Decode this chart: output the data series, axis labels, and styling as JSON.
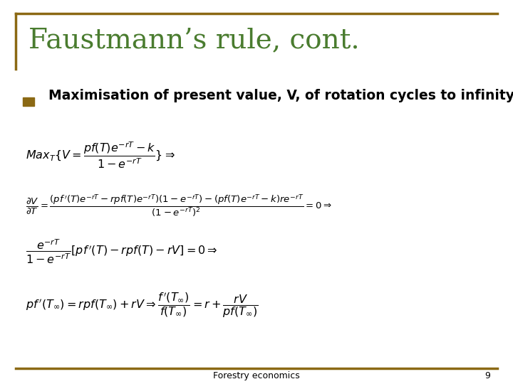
{
  "title": "Faustmann’s rule, cont.",
  "title_color": "#4a7c2f",
  "title_fontsize": 28,
  "bullet_text": "Maximisation of present value, V, of rotation cycles to infinity",
  "bullet_square_color": "#8b6914",
  "bg_color": "#ffffff",
  "border_color": "#8b6914",
  "footer_text": "Forestry economics",
  "footer_page": "9"
}
